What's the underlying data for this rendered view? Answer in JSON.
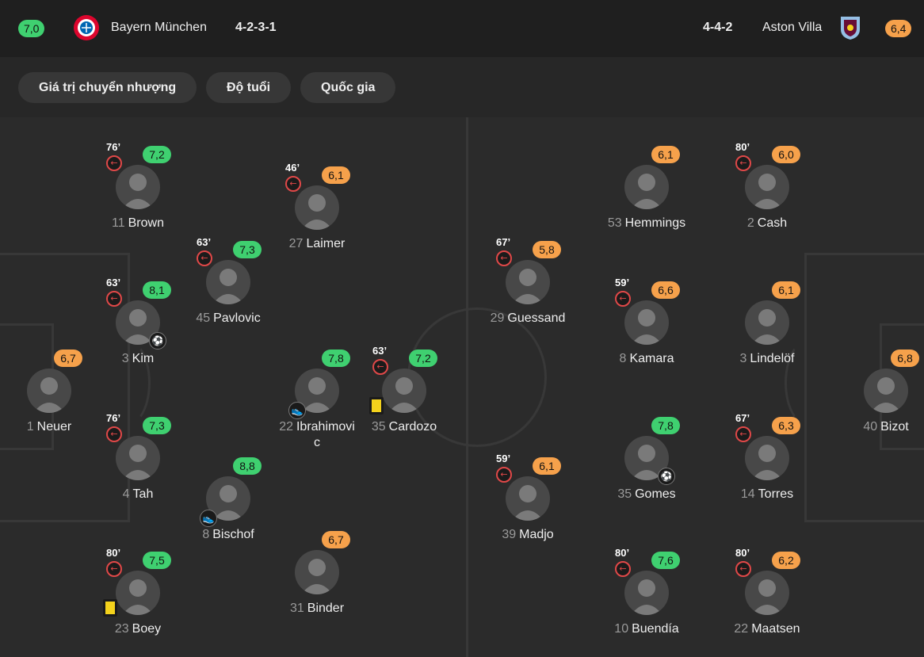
{
  "header": {
    "home": {
      "rating": "7,0",
      "name": "Bayern München",
      "formation": "4-2-3-1",
      "crest": "bayern-crest-icon",
      "rating_color": "#3fd070"
    },
    "away": {
      "rating": "6,4",
      "name": "Aston Villa",
      "formation": "4-4-2",
      "crest": "aston-villa-crest-icon",
      "rating_color": "#f6a14b"
    }
  },
  "filters": [
    "Giá trị chuyển nhượng",
    "Độ tuổi",
    "Quốc gia"
  ],
  "players": [
    {
      "num": "11",
      "name": "Brown",
      "rating": "7,2",
      "color": "green",
      "sub": "76’"
    },
    {
      "num": "27",
      "name": "Laimer",
      "rating": "6,1",
      "color": "orange",
      "sub": "46’"
    },
    {
      "num": "45",
      "name": "Pavlovic",
      "rating": "7,3",
      "color": "green",
      "sub": "63’"
    },
    {
      "num": "3",
      "name": "Kim",
      "rating": "8,1",
      "color": "green",
      "sub": "63’"
    },
    {
      "num": "1",
      "name": "Neuer",
      "rating": "6,7",
      "color": "orange"
    },
    {
      "num": "22",
      "name": "Ibrahimovi c",
      "rating": "7,8",
      "color": "green"
    },
    {
      "num": "35",
      "name": "Cardozo",
      "rating": "7,2",
      "color": "green",
      "sub": "63’"
    },
    {
      "num": "4",
      "name": "Tah",
      "rating": "7,3",
      "color": "green",
      "sub": "76’"
    },
    {
      "num": "8",
      "name": "Bischof",
      "rating": "8,8",
      "color": "green"
    },
    {
      "num": "23",
      "name": "Boey",
      "rating": "7,5",
      "color": "green",
      "sub": "80’"
    },
    {
      "num": "31",
      "name": "Binder",
      "rating": "6,7",
      "color": "orange"
    },
    {
      "num": "53",
      "name": "Hemmings",
      "rating": "6,1",
      "color": "orange"
    },
    {
      "num": "2",
      "name": "Cash",
      "rating": "6,0",
      "color": "orange",
      "sub": "80’"
    },
    {
      "num": "29",
      "name": "Guessand",
      "rating": "5,8",
      "color": "orange",
      "sub": "67’"
    },
    {
      "num": "8",
      "name": "Kamara",
      "rating": "6,6",
      "color": "orange",
      "sub": "59’"
    },
    {
      "num": "3",
      "name": "Lindelöf",
      "rating": "6,1",
      "color": "orange"
    },
    {
      "num": "40",
      "name": "Bizot",
      "rating": "6,8",
      "color": "orange"
    },
    {
      "num": "39",
      "name": "Madjo",
      "rating": "6,1",
      "color": "orange",
      "sub": "59’"
    },
    {
      "num": "35",
      "name": "Gomes",
      "rating": "7,8",
      "color": "green"
    },
    {
      "num": "14",
      "name": "Torres",
      "rating": "6,3",
      "color": "orange",
      "sub": "67’"
    },
    {
      "num": "10",
      "name": "Buendía",
      "rating": "7,6",
      "color": "green",
      "sub": "80’"
    },
    {
      "num": "22",
      "name": "Maatsen",
      "rating": "6,2",
      "color": "orange",
      "sub": "80’"
    }
  ]
}
